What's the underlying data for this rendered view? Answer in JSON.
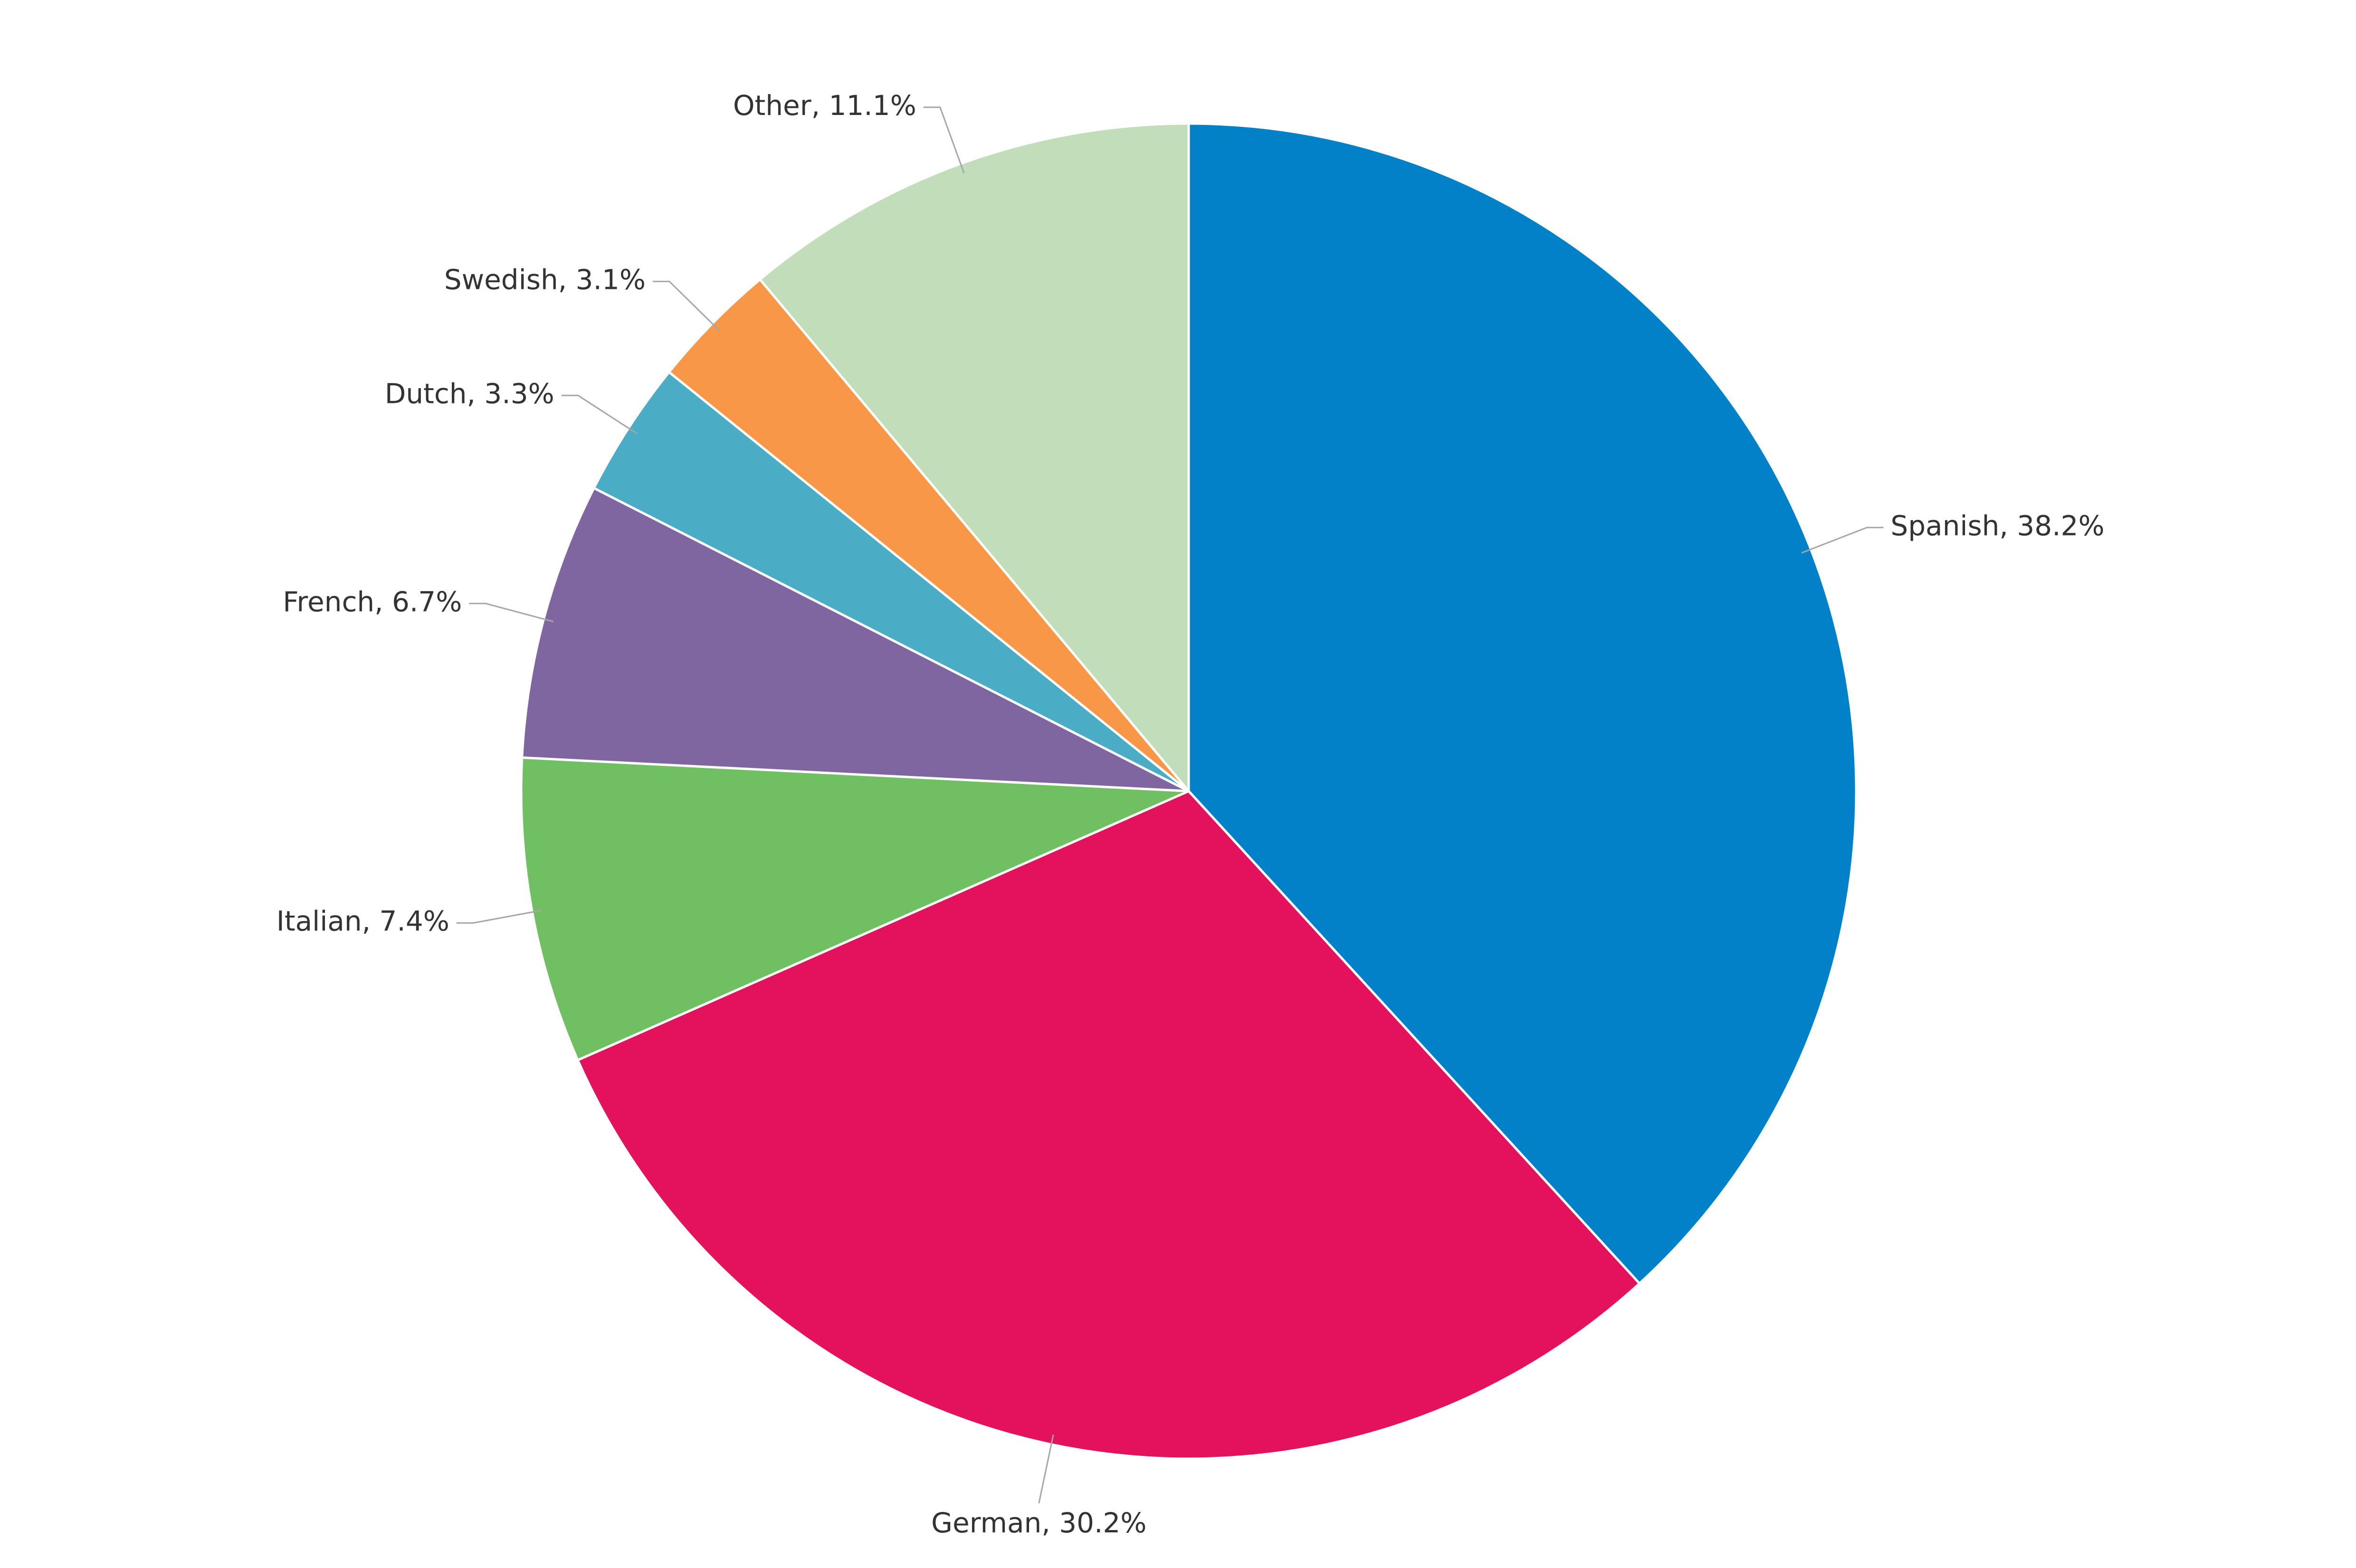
{
  "chart_data": {
    "type": "pie",
    "categories": [
      "Spanish",
      "German",
      "Italian",
      "French",
      "Dutch",
      "Swedish",
      "Other"
    ],
    "values": [
      38.2,
      30.2,
      7.4,
      6.7,
      3.3,
      3.1,
      11.1
    ],
    "value_labels": [
      "Spanish, 38.2%",
      "German, 30.2%",
      "Italian, 7.4%",
      "French, 6.7%",
      "Dutch, 3.3%",
      "Swedish, 3.1%",
      "Other, 11.1%"
    ],
    "colors": [
      "#0281c8",
      "#e4115c",
      "#70c063",
      "#8066a1",
      "#4bacc6",
      "#f79747",
      "#c2ddb9"
    ]
  }
}
